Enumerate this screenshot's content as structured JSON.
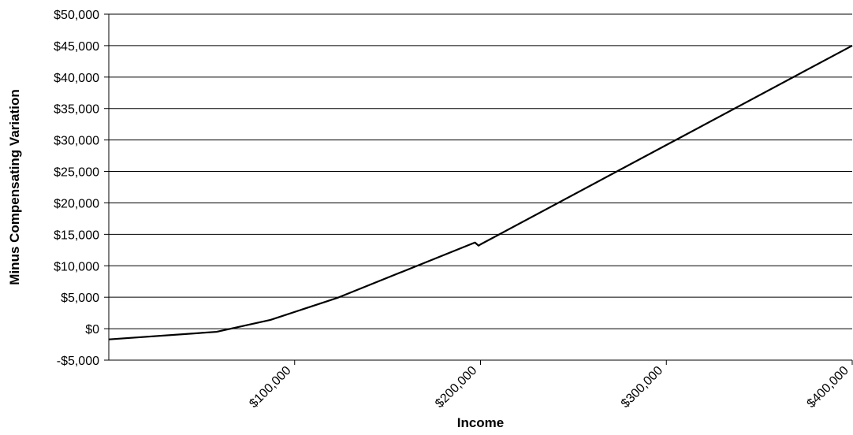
{
  "chart_data": {
    "type": "line",
    "title": "",
    "xlabel": "Income",
    "ylabel": "Minus Compensating Variation",
    "xlim": [
      0,
      400000
    ],
    "ylim": [
      -5000,
      50000
    ],
    "grid": "horizontal",
    "legend": "none",
    "x_ticks": [
      100000,
      200000,
      300000,
      400000
    ],
    "x_tick_labels": [
      "$100,000",
      "$200,000",
      "$300,000",
      "$400,000"
    ],
    "y_ticks": [
      -5000,
      0,
      5000,
      10000,
      15000,
      20000,
      25000,
      30000,
      35000,
      40000,
      45000,
      50000
    ],
    "y_tick_labels": [
      "-$5,000",
      "$0",
      "$5,000",
      "$10,000",
      "$15,000",
      "$20,000",
      "$25,000",
      "$30,000",
      "$35,000",
      "$40,000",
      "$45,000",
      "$50,000"
    ],
    "series": [
      {
        "color": "#000000",
        "x": [
          0,
          58000,
          87000,
          123000,
          197000,
          199000,
          200000,
          300000,
          400000
        ],
        "y": [
          -1700,
          -500,
          1400,
          4900,
          13700,
          13200,
          13400,
          29200,
          45000
        ]
      }
    ]
  }
}
